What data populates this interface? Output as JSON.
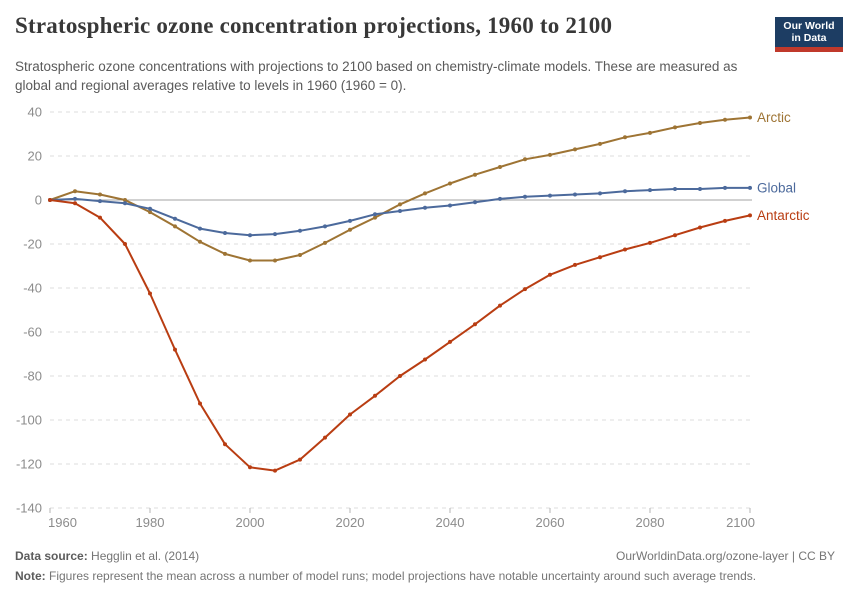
{
  "header": {
    "title": "Stratospheric ozone concentration projections, 1960 to 2100",
    "logo": {
      "line1": "Our World",
      "line2": "in Data",
      "bg_color": "#1d3d63",
      "bar_color": "#c0392b"
    }
  },
  "subtitle": "Stratospheric ozone concentrations with projections to 2100 based on chemistry-climate models. These are measured as global and regional averages relative to levels in 1960 (1960 = 0).",
  "chart_data": {
    "type": "line",
    "title": "Stratospheric ozone concentration projections, 1960 to 2100",
    "xlabel": "",
    "ylabel": "",
    "x": [
      1960,
      1965,
      1970,
      1975,
      1980,
      1985,
      1990,
      1995,
      2000,
      2005,
      2010,
      2015,
      2020,
      2025,
      2030,
      2035,
      2040,
      2045,
      2050,
      2055,
      2060,
      2065,
      2070,
      2075,
      2080,
      2085,
      2090,
      2095,
      2100
    ],
    "series": [
      {
        "name": "Arctic",
        "color": "#9e7434",
        "values": [
          0,
          4,
          2.5,
          0,
          -5.5,
          -12,
          -19,
          -24.5,
          -27.5,
          -27.5,
          -25,
          -19.5,
          -13.5,
          -8,
          -2,
          3,
          7.5,
          11.5,
          15,
          18.5,
          20.5,
          23,
          25.5,
          28.5,
          30.5,
          33,
          35,
          36.5,
          37.5
        ]
      },
      {
        "name": "Global",
        "color": "#4c6a9c",
        "values": [
          0,
          0.5,
          -0.5,
          -1.5,
          -4,
          -8.5,
          -13,
          -15,
          -16,
          -15.5,
          -14,
          -12,
          -9.5,
          -6.5,
          -5,
          -3.5,
          -2.5,
          -1,
          0.5,
          1.5,
          2,
          2.5,
          3,
          4,
          4.5,
          5,
          5,
          5.5,
          5.5
        ]
      },
      {
        "name": "Antarctic",
        "color": "#b93d12",
        "values": [
          0,
          -1.5,
          -8,
          -20,
          -42.5,
          -68,
          -92.5,
          -111,
          -121.5,
          -123,
          -118,
          -108,
          -97.5,
          -89,
          -80,
          -72.5,
          -64.5,
          -56.5,
          -48,
          -40.5,
          -34,
          -29.5,
          -26,
          -22.5,
          -19.5,
          -16,
          -12.5,
          -9.5,
          -7
        ]
      }
    ],
    "xlim": [
      1960,
      2100
    ],
    "ylim": [
      -140,
      40
    ],
    "x_ticks": [
      1960,
      1980,
      2000,
      2020,
      2040,
      2060,
      2080,
      2100
    ],
    "y_ticks": [
      40,
      20,
      0,
      -20,
      -40,
      -60,
      -80,
      -100,
      -120,
      -140
    ],
    "grid": "horizontal-dashed",
    "zero_line": true,
    "legend_position": "right-end-labels"
  },
  "footer": {
    "data_source_label": "Data source:",
    "data_source_value": "Hegglin et al. (2014)",
    "link": "OurWorldinData.org/ozone-layer | CC BY",
    "note_label": "Note:",
    "note_value": "Figures represent the mean across a number of model runs; model projections have notable uncertainty around such average trends."
  }
}
